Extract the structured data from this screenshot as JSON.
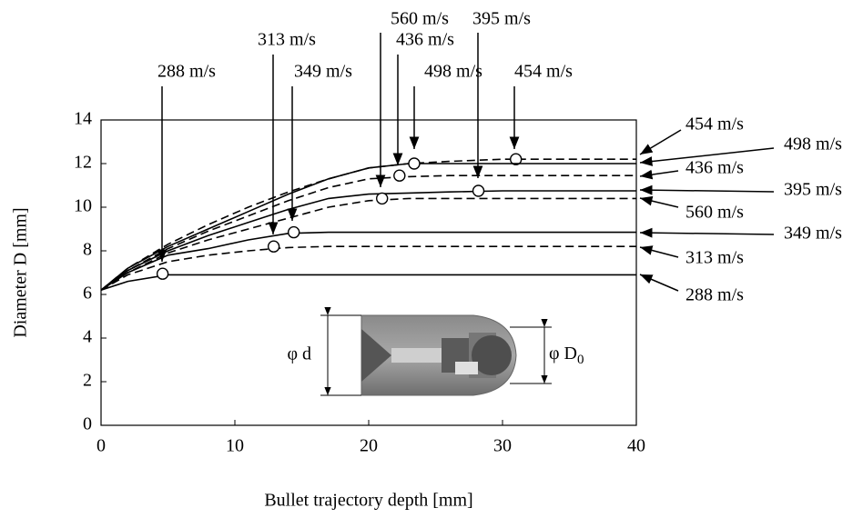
{
  "chart_data": {
    "type": "line",
    "xlabel": "Bullet trajectory depth [mm]",
    "ylabel": "Diameter D [mm]",
    "xlim": [
      0,
      40
    ],
    "xticks": [
      0,
      10,
      20,
      30,
      40
    ],
    "ylim": [
      0,
      14
    ],
    "yticks": [
      0,
      2,
      4,
      6,
      8,
      10,
      12,
      14
    ],
    "x": [
      0,
      2,
      5,
      8,
      11,
      14,
      17,
      20,
      23,
      26,
      30,
      35,
      40
    ],
    "series": [
      {
        "name": "288 m/s",
        "dashed": false,
        "values": [
          6.2,
          6.6,
          6.9,
          6.9,
          6.9,
          6.9,
          6.9,
          6.9,
          6.9,
          6.9,
          6.9,
          6.9,
          6.9
        ],
        "marker_x": 4.6,
        "marker_y": 6.95
      },
      {
        "name": "313 m/s",
        "dashed": true,
        "values": [
          6.2,
          6.9,
          7.5,
          7.8,
          8.0,
          8.15,
          8.2,
          8.2,
          8.2,
          8.2,
          8.2,
          8.2,
          8.2
        ],
        "marker_x": 12.9,
        "marker_y": 8.2
      },
      {
        "name": "349 m/s",
        "dashed": false,
        "values": [
          6.2,
          7.0,
          7.8,
          8.1,
          8.5,
          8.8,
          8.85,
          8.85,
          8.85,
          8.85,
          8.85,
          8.85,
          8.85
        ],
        "marker_x": 14.4,
        "marker_y": 8.85
      },
      {
        "name": "395 m/s",
        "dashed": false,
        "values": [
          6.2,
          7.1,
          8.0,
          8.7,
          9.3,
          9.9,
          10.4,
          10.6,
          10.65,
          10.7,
          10.75,
          10.75,
          10.75
        ],
        "marker_x": 28.2,
        "marker_y": 10.75
      },
      {
        "name": "436 m/s",
        "dashed": true,
        "values": [
          6.2,
          7.1,
          8.1,
          8.9,
          9.6,
          10.3,
          10.9,
          11.3,
          11.4,
          11.45,
          11.45,
          11.45,
          11.45
        ],
        "marker_x": 22.3,
        "marker_y": 11.45
      },
      {
        "name": "454 m/s",
        "dashed": true,
        "values": [
          6.2,
          7.2,
          8.3,
          9.2,
          10.0,
          10.7,
          11.3,
          11.8,
          12.0,
          12.1,
          12.2,
          12.2,
          12.2
        ],
        "marker_x": 31,
        "marker_y": 12.2
      },
      {
        "name": "498 m/s",
        "dashed": false,
        "values": [
          6.2,
          7.2,
          8.2,
          9.0,
          9.8,
          10.6,
          11.3,
          11.8,
          12.0,
          12.0,
          12.0,
          12.0,
          12.0
        ],
        "marker_x": 23.4,
        "marker_y": 12.0
      },
      {
        "name": "560 m/s",
        "dashed": true,
        "values": [
          6.2,
          7.0,
          7.9,
          8.5,
          9.0,
          9.5,
          10.0,
          10.3,
          10.4,
          10.4,
          10.4,
          10.4,
          10.4
        ],
        "marker_x": 21,
        "marker_y": 10.4
      }
    ],
    "inset": {
      "left_label": "φ d",
      "right_label": "φ D",
      "right_subscript": "0"
    }
  }
}
